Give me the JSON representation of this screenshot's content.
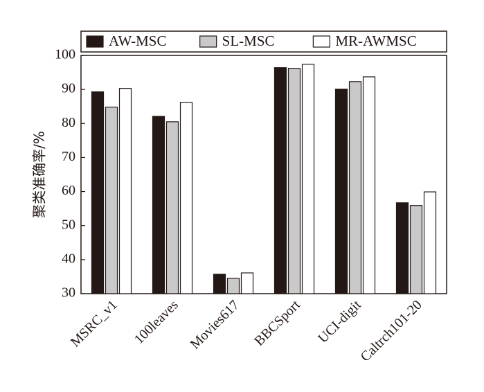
{
  "chart_data": {
    "type": "bar",
    "y_label": "聚类准确率/%",
    "categories": [
      "MSRC_v1",
      "100leaves",
      "Movies617",
      "BBCSport",
      "UCI-digit",
      "Caltrch101-20"
    ],
    "series": [
      {
        "name": "AW-MSC",
        "color": "#231815",
        "values": [
          89.3,
          82.1,
          35.7,
          96.4,
          90.1,
          56.7
        ]
      },
      {
        "name": "SL-MSC",
        "color": "#c9c9c9",
        "values": [
          84.8,
          80.5,
          34.5,
          96.2,
          92.3,
          55.9
        ]
      },
      {
        "name": "MR-AWMSC",
        "color": "#ffffff",
        "values": [
          90.3,
          86.2,
          36.1,
          97.4,
          93.7,
          59.9
        ]
      }
    ],
    "ylim": [
      30,
      100
    ],
    "yticks": [
      30,
      40,
      50,
      60,
      70,
      80,
      90,
      100
    ]
  }
}
